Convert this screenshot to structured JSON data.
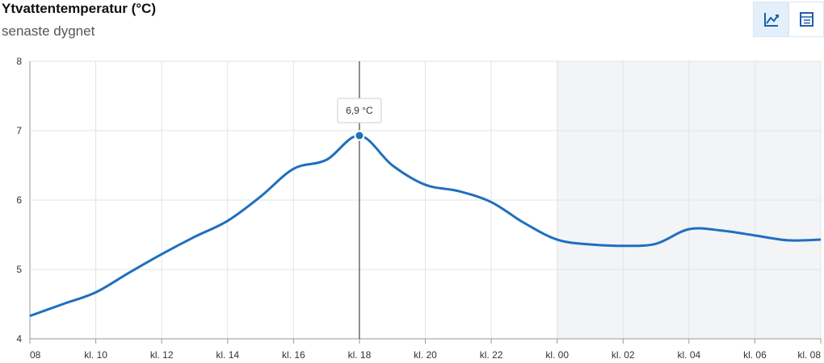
{
  "chart_data": {
    "type": "line",
    "title": "Ytvattentemperatur (°C)",
    "subtitle": "senaste dygnet",
    "x": [
      0,
      1,
      2,
      3,
      4,
      5,
      6,
      7,
      8,
      9,
      10,
      11,
      12,
      13,
      14,
      15,
      16,
      17,
      18,
      19,
      20,
      21,
      22,
      23,
      24
    ],
    "series": [
      {
        "name": "Ytvattentemperatur",
        "color": "#1f6fbf",
        "values": [
          4.33,
          4.5,
          4.67,
          4.95,
          5.22,
          5.47,
          5.7,
          6.05,
          6.45,
          6.58,
          6.93,
          6.5,
          6.22,
          6.13,
          5.97,
          5.67,
          5.43,
          5.36,
          5.34,
          5.37,
          5.58,
          5.56,
          5.49,
          5.42,
          5.43
        ]
      }
    ],
    "xlim": [
      0,
      24
    ],
    "xticks": [
      {
        "value": 0,
        "label": "08"
      },
      {
        "value": 2,
        "label": "kl. 10"
      },
      {
        "value": 4,
        "label": "kl. 12"
      },
      {
        "value": 6,
        "label": "kl. 14"
      },
      {
        "value": 8,
        "label": "kl. 16"
      },
      {
        "value": 10,
        "label": "kl. 18"
      },
      {
        "value": 12,
        "label": "kl. 20"
      },
      {
        "value": 14,
        "label": "kl. 22"
      },
      {
        "value": 16,
        "label": "kl. 00"
      },
      {
        "value": 18,
        "label": "kl. 02"
      },
      {
        "value": 20,
        "label": "kl. 04"
      },
      {
        "value": 22,
        "label": "kl. 06"
      },
      {
        "value": 24,
        "label": "kl. 08"
      }
    ],
    "ylim": [
      4,
      8
    ],
    "yticks": [
      4,
      5,
      6,
      7,
      8
    ],
    "grid": true,
    "shaded_xlim": [
      16,
      24
    ],
    "tooltip": {
      "point": 10,
      "label": "6,9 °C"
    }
  }
}
